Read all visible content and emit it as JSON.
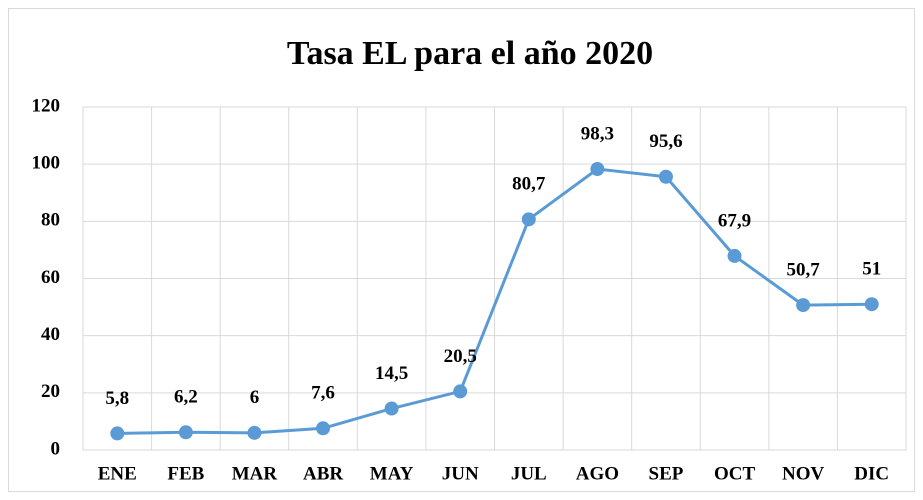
{
  "chart_data": {
    "type": "line",
    "title": "Tasa EL para el año 2020",
    "categories": [
      "ENE",
      "FEB",
      "MAR",
      "ABR",
      "MAY",
      "JUN",
      "JUL",
      "AGO",
      "SEP",
      "OCT",
      "NOV",
      "DIC"
    ],
    "series": [
      {
        "color": "#5b9bd5",
        "values": [
          5.8,
          6.2,
          6,
          7.6,
          14.5,
          20.5,
          80.7,
          98.3,
          95.6,
          67.9,
          50.7,
          51
        ],
        "value_labels": [
          "5,8",
          "6,2",
          "6",
          "7,6",
          "14,5",
          "20,5",
          "80,7",
          "98,3",
          "95,6",
          "67,9",
          "50,7",
          "51"
        ]
      }
    ],
    "ylim": [
      0,
      120
    ],
    "yticks": [
      0,
      20,
      40,
      60,
      80,
      100,
      120
    ],
    "grid": true
  }
}
